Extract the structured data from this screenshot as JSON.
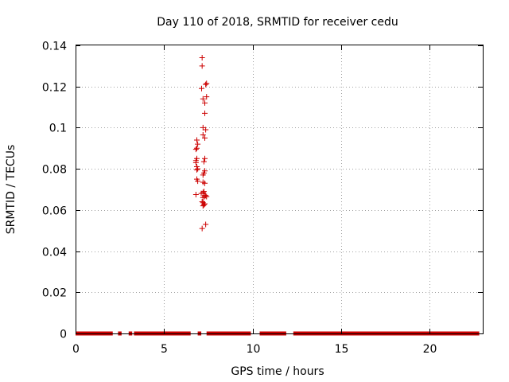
{
  "chart_data": {
    "type": "scatter",
    "title": "Day 110 of 2018, SRMTID for receiver cedu",
    "xlabel": "GPS time / hours",
    "ylabel": "SRMTID / TECUs",
    "xlim": [
      0,
      23
    ],
    "ylim": [
      0,
      0.14
    ],
    "x_ticks": [
      0,
      5,
      10,
      15,
      20
    ],
    "y_ticks": [
      0,
      0.02,
      0.04,
      0.06,
      0.08,
      0.1,
      0.12,
      0.14
    ],
    "x_tick_labels": [
      "0",
      "5",
      "10",
      "15",
      "20"
    ],
    "y_tick_labels": [
      "0",
      "0.02",
      "0.04",
      "0.06",
      "0.08",
      "0.1",
      "0.12",
      "0.14"
    ],
    "grid": true,
    "marker": "+",
    "color": "#cc0000",
    "zero_value_segments": [
      [
        0.0,
        2.1
      ],
      [
        2.4,
        2.6
      ],
      [
        3.0,
        3.2
      ],
      [
        3.3,
        6.5
      ],
      [
        6.9,
        7.1
      ],
      [
        7.4,
        9.9
      ],
      [
        10.4,
        11.9
      ],
      [
        12.3,
        22.8
      ]
    ],
    "series": [
      {
        "name": "SRMTID",
        "x": [
          7.15,
          7.15,
          7.4,
          7.35,
          7.12,
          7.2,
          7.3,
          7.4,
          7.3,
          7.2,
          7.35,
          7.3,
          6.85,
          6.9,
          6.85,
          6.8,
          6.85,
          6.8,
          6.8,
          6.85,
          6.9,
          7.3,
          7.25,
          6.85,
          7.3,
          7.25,
          7.2,
          6.85,
          6.9,
          7.3,
          7.2,
          7.1,
          7.2,
          7.3,
          6.8,
          7.3,
          7.2,
          7.15,
          7.2,
          7.3,
          7.2,
          7.25,
          7.35,
          7.15,
          7.25,
          7.2,
          7.4,
          7.35
        ],
        "y": [
          0.134,
          0.13,
          0.1215,
          0.121,
          0.119,
          0.114,
          0.112,
          0.115,
          0.107,
          0.1,
          0.099,
          0.095,
          0.094,
          0.092,
          0.09,
          0.0895,
          0.085,
          0.084,
          0.083,
          0.081,
          0.08,
          0.085,
          0.0835,
          0.0795,
          0.079,
          0.078,
          0.077,
          0.075,
          0.074,
          0.073,
          0.0735,
          0.068,
          0.0685,
          0.067,
          0.0675,
          0.0665,
          0.066,
          0.064,
          0.0635,
          0.063,
          0.062,
          0.0625,
          0.053,
          0.051,
          0.069,
          0.0965,
          0.0665,
          0.067
        ]
      }
    ]
  }
}
